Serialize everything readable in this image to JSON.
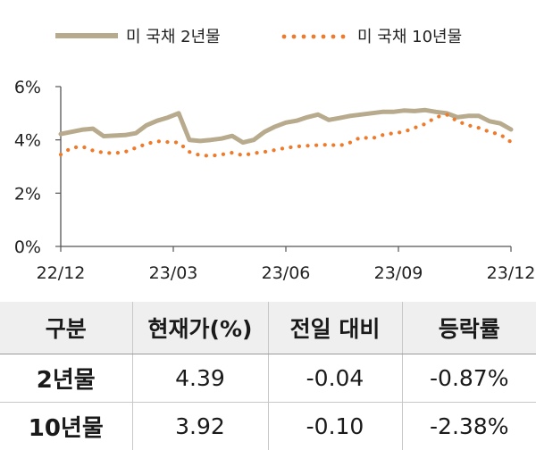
{
  "chart_data": {
    "type": "line",
    "title": "",
    "xlabel": "",
    "ylabel": "",
    "ylim": [
      0,
      6
    ],
    "y_ticks": [
      "0%",
      "2%",
      "4%",
      "6%"
    ],
    "x_ticks": [
      "22/12",
      "23/03",
      "23/06",
      "23/09",
      "23/12"
    ],
    "grid": false,
    "legend": "top",
    "series": [
      {
        "name": "미 국채 2년물",
        "style": "solid",
        "color": "#b8aa8c",
        "values": [
          4.22,
          4.3,
          4.38,
          4.42,
          4.14,
          4.16,
          4.18,
          4.25,
          4.55,
          4.72,
          4.84,
          5.0,
          4.0,
          3.96,
          4.0,
          4.05,
          4.15,
          3.9,
          4.0,
          4.3,
          4.5,
          4.65,
          4.72,
          4.85,
          4.95,
          4.75,
          4.82,
          4.9,
          4.95,
          5.0,
          5.05,
          5.05,
          5.1,
          5.08,
          5.12,
          5.05,
          5.0,
          4.85,
          4.9,
          4.9,
          4.7,
          4.62,
          4.39
        ]
      },
      {
        "name": "미 국채 10년물",
        "style": "dotted",
        "color": "#ee7a2a",
        "values": [
          3.45,
          3.7,
          3.75,
          3.6,
          3.52,
          3.5,
          3.55,
          3.7,
          3.85,
          3.95,
          3.92,
          3.9,
          3.55,
          3.42,
          3.4,
          3.45,
          3.52,
          3.42,
          3.5,
          3.55,
          3.62,
          3.7,
          3.75,
          3.78,
          3.8,
          3.82,
          3.78,
          3.9,
          4.1,
          4.05,
          4.18,
          4.25,
          4.3,
          4.45,
          4.6,
          4.85,
          4.95,
          4.7,
          4.55,
          4.45,
          4.3,
          4.2,
          3.92
        ]
      }
    ]
  },
  "table": {
    "headers": [
      "구분",
      "현재가(%)",
      "전일 대비",
      "등락률"
    ],
    "rows": [
      [
        "2년물",
        "4.39",
        "-0.04",
        "-0.87%"
      ],
      [
        "10년물",
        "3.92",
        "-0.10",
        "-2.38%"
      ]
    ]
  }
}
